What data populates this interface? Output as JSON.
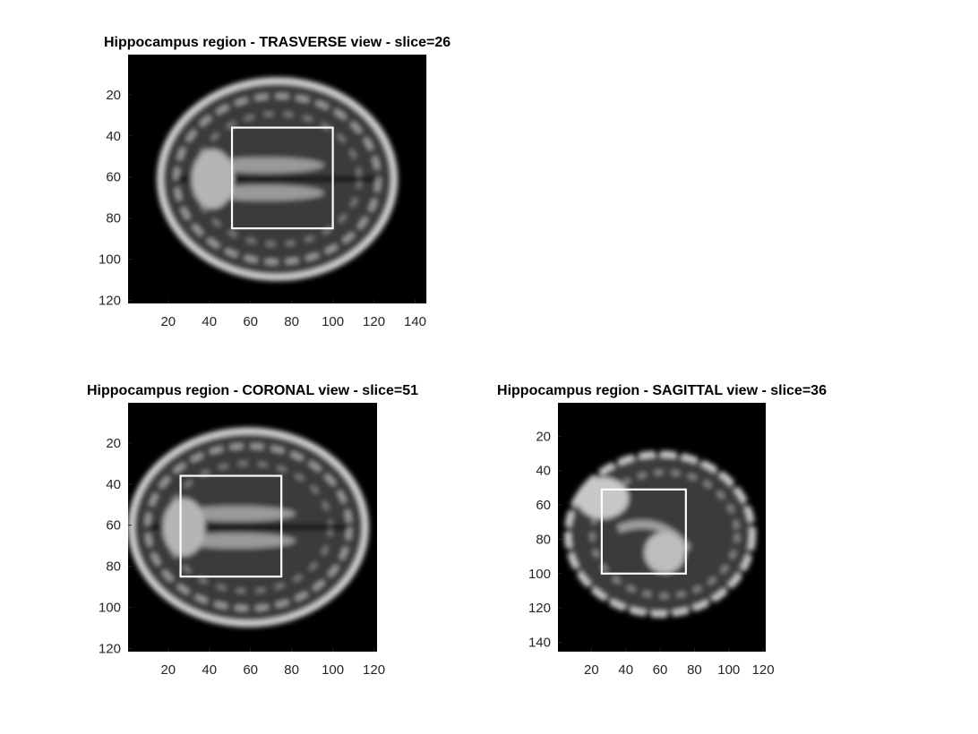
{
  "chart_data": [
    {
      "type": "heatmap",
      "title": "Hippocampus region - TRASVERSE view - slice=26",
      "colormap": "gray",
      "xlim": [
        0.5,
        145.5
      ],
      "ylim": [
        0.5,
        121.5
      ],
      "y_reversed": true,
      "xticks": [
        20,
        40,
        60,
        80,
        100,
        120,
        140
      ],
      "yticks": [
        20,
        40,
        60,
        80,
        100,
        120
      ],
      "roi_box": {
        "x_min": 51,
        "x_max": 100,
        "y_min": 36,
        "y_max": 85
      },
      "roi_color": "#ffffff",
      "brain": {
        "cx": 73,
        "cy": 61,
        "rx": 57,
        "ry": 48,
        "axis": "horizontal"
      }
    },
    {
      "type": "heatmap",
      "title": "Hippocampus region - CORONAL view - slice=51",
      "colormap": "gray",
      "xlim": [
        0.5,
        121.5
      ],
      "ylim": [
        0.5,
        121.5
      ],
      "y_reversed": true,
      "xticks": [
        20,
        40,
        60,
        80,
        100,
        120
      ],
      "yticks": [
        20,
        40,
        60,
        80,
        100,
        120
      ],
      "roi_box": {
        "x_min": 26,
        "x_max": 75,
        "y_min": 36,
        "y_max": 85
      },
      "roi_color": "#ffffff",
      "brain": {
        "cx": 59,
        "cy": 61,
        "rx": 57,
        "ry": 47,
        "axis": "horizontal"
      }
    },
    {
      "type": "heatmap",
      "title": "Hippocampus region - SAGITTAL view - slice=36",
      "colormap": "gray",
      "xlim": [
        0.5,
        121.5
      ],
      "ylim": [
        0.5,
        145.5
      ],
      "y_reversed": true,
      "xticks": [
        20,
        40,
        60,
        80,
        100,
        120
      ],
      "yticks": [
        20,
        40,
        60,
        80,
        100,
        120,
        140
      ],
      "roi_box": {
        "x_min": 26,
        "x_max": 75,
        "y_min": 51,
        "y_max": 100
      },
      "roi_color": "#ffffff",
      "brain": {
        "cx": 60,
        "cy": 77,
        "rx": 54,
        "ry": 60,
        "axis": "sagittal"
      }
    }
  ]
}
